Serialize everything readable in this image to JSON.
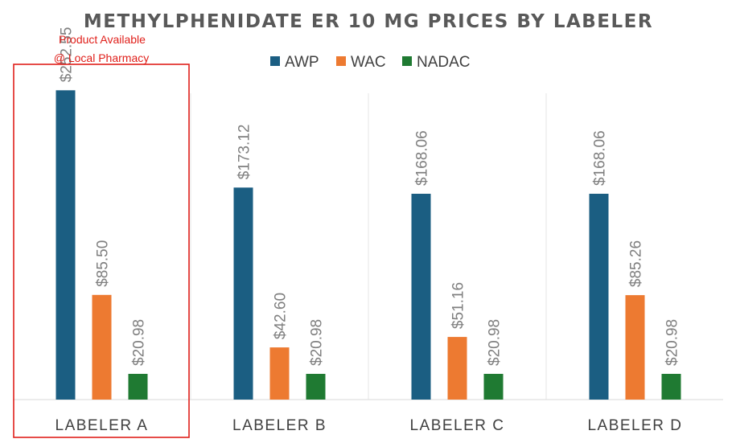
{
  "chart_data": {
    "type": "bar",
    "title": "METHYLPHENIDATE ER 10 MG PRICES BY LABELER",
    "categories": [
      "LABELER A",
      "LABELER B",
      "LABELER C",
      "LABELER D"
    ],
    "series": [
      {
        "name": "AWP",
        "color": "#1b5e82",
        "values": [
          252.55,
          173.12,
          168.06,
          168.06
        ],
        "labels": [
          "$252.55",
          "$173.12",
          "$168.06",
          "$168.06"
        ]
      },
      {
        "name": "WAC",
        "color": "#ed7a31",
        "values": [
          85.5,
          42.6,
          51.16,
          85.26
        ],
        "labels": [
          "$85.50",
          "$42.60",
          "$51.16",
          "$85.26"
        ]
      },
      {
        "name": "NADAC",
        "color": "#1f7a32",
        "values": [
          20.98,
          20.98,
          20.98,
          20.98
        ],
        "labels": [
          "$20.98",
          "$20.98",
          "$20.98",
          "$20.98"
        ]
      }
    ],
    "ylim": [
      0,
      300
    ],
    "legend": "top",
    "grid": false,
    "annotation": {
      "lines": [
        "Product Available",
        "@ Local Pharmacy"
      ],
      "target_category": "LABELER A",
      "color": "#e0201b"
    }
  }
}
